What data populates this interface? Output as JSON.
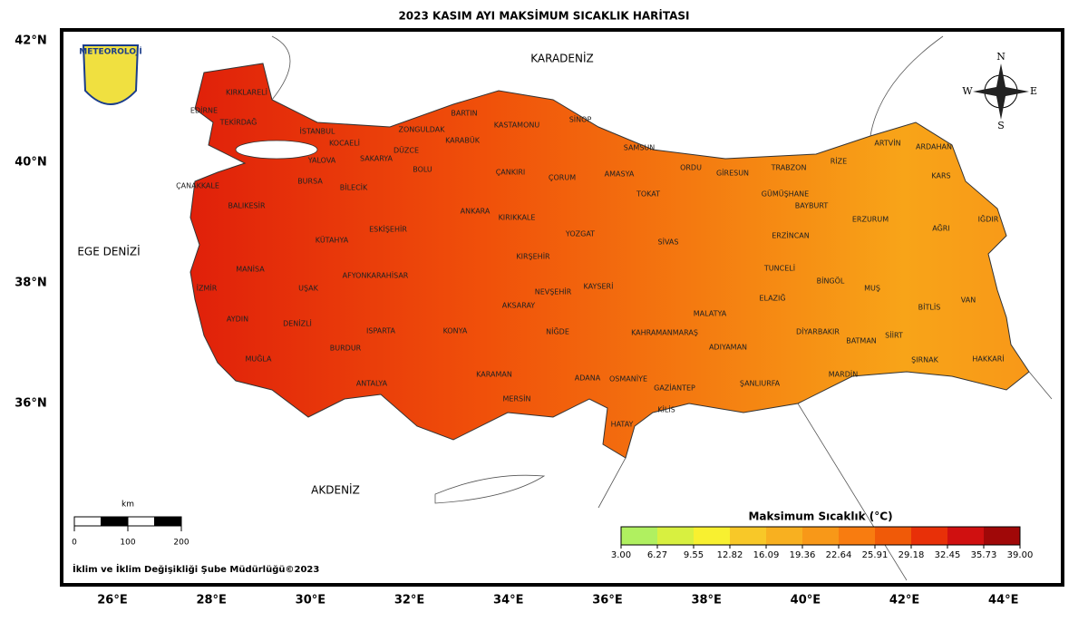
{
  "title": "2023 KASIM AYI MAKSİMUM SICAKLIK HARİTASI",
  "logo": "METEOROLOJİ",
  "lat_labels": [
    "42°N",
    "40°N",
    "38°N",
    "36°N"
  ],
  "lon_labels": [
    "26°E",
    "28°E",
    "30°E",
    "32°E",
    "34°E",
    "36°E",
    "38°E",
    "40°E",
    "42°E",
    "44°E"
  ],
  "seas": [
    "KARADENİZ",
    "EGE DENİZİ",
    "AKDENİZ"
  ],
  "compass": [
    "N",
    "E",
    "S",
    "W"
  ],
  "provinces": [
    "KIRKLARELİ",
    "EDİRNE",
    "TEKİRDAĞ",
    "İSTANBUL",
    "KOCAELİ",
    "ZONGULDAK",
    "BARTIN",
    "KASTAMONU",
    "SİNOP",
    "SAMSUN",
    "DÜZCE",
    "SAKARYA",
    "YALOVA",
    "BURSA",
    "BİLECİK",
    "BOLU",
    "KARABÜK",
    "ÇANKIRI",
    "ÇORUM",
    "AMASYA",
    "TOKAT",
    "ORDU",
    "GİRESUN",
    "TRABZON",
    "RİZE",
    "ARTVİN",
    "ARDAHAN",
    "KARS",
    "IĞDIR",
    "AĞRI",
    "ERZURUM",
    "GÜMÜŞHANE",
    "BAYBURT",
    "ERZİNCAN",
    "ÇANAKKALE",
    "BALIKESİR",
    "ESKİŞEHİR",
    "KÜTAHYA",
    "ANKARA",
    "KIRIKKALE",
    "YOZGAT",
    "SİVAS",
    "KIRŞEHİR",
    "MANİSA",
    "İZMİR",
    "UŞAK",
    "AFYONKARAHİSAR",
    "NEVŞEHİR",
    "KAYSERİ",
    "TUNCELİ",
    "BİNGÖL",
    "MUŞ",
    "VAN",
    "BİTLİS",
    "ELAZIĞ",
    "MALATYA",
    "AKSARAY",
    "AYDIN",
    "DENİZLİ",
    "ISPARTA",
    "KONYA",
    "NİĞDE",
    "KAHRAMANMARAŞ",
    "DİYARBAKIR",
    "SİİRT",
    "BATMAN",
    "ADIYAMAN",
    "BURDUR",
    "MUĞLA",
    "ŞIRNAK",
    "HAKKARİ",
    "MARDİN",
    "KARAMAN",
    "ADANA",
    "OSMANİYE",
    "ŞANLIURFA",
    "GAZİANTEP",
    "ANTALYA",
    "MERSİN",
    "KİLİS",
    "HATAY"
  ],
  "legend": {
    "title": "Maksimum Sıcaklık (°C)",
    "ticks": [
      {
        "value": 3,
        "label": "3.00"
      },
      {
        "value": 6.27,
        "label": "6.27"
      },
      {
        "value": 9.55,
        "label": "9.55"
      },
      {
        "value": 12.82,
        "label": "12.82"
      },
      {
        "value": 16.09,
        "label": "16.09"
      },
      {
        "value": 19.36,
        "label": "19.36"
      },
      {
        "value": 22.64,
        "label": "22.64"
      },
      {
        "value": 25.91,
        "label": "25.91"
      },
      {
        "value": 29.18,
        "label": "29.18"
      },
      {
        "value": 32.45,
        "label": "32.45"
      },
      {
        "value": 35.73,
        "label": "35.73"
      },
      {
        "value": 39,
        "label": "39.00"
      }
    ],
    "colors": [
      "#b0f060",
      "#d8f040",
      "#f8f030",
      "#f8c828",
      "#f8b020",
      "#f89818",
      "#f87c10",
      "#f05a08",
      "#e83008",
      "#d01010",
      "#a00808"
    ]
  },
  "scale_bar": {
    "unit": "km",
    "ticks": [
      0,
      100,
      200
    ]
  },
  "credit": "İklim ve İklim Değişikliği Şube Müdürlüğü©2023"
}
